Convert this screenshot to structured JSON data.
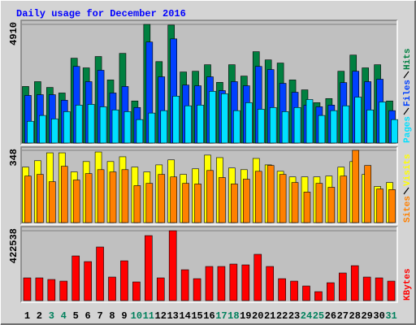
{
  "chart_data": [
    {
      "type": "bar",
      "title": "Daily usage for December 2016",
      "categories": [
        "1",
        "2",
        "3",
        "4",
        "5",
        "6",
        "7",
        "8",
        "9",
        "10",
        "11",
        "12",
        "13",
        "14",
        "15",
        "16",
        "17",
        "18",
        "19",
        "20",
        "21",
        "22",
        "23",
        "24",
        "25",
        "26",
        "27",
        "28",
        "29",
        "30",
        "31"
      ],
      "category_colors": [
        "#000000",
        "#000000",
        "#00805c",
        "#00805c",
        "#000000",
        "#000000",
        "#000000",
        "#000000",
        "#000000",
        "#00805c",
        "#00805c",
        "#000000",
        "#000000",
        "#000000",
        "#000000",
        "#000000",
        "#00805c",
        "#00805c",
        "#000000",
        "#000000",
        "#000000",
        "#000000",
        "#000000",
        "#00805c",
        "#00805c",
        "#000000",
        "#000000",
        "#000000",
        "#000000",
        "#000000",
        "#00805c"
      ],
      "ylim": [
        0,
        4910
      ],
      "yticks": [
        4910
      ],
      "series": [
        {
          "name": "Pages",
          "color": "#00e0ff",
          "values": [
            900,
            1140,
            1000,
            1300,
            1570,
            1600,
            1500,
            1370,
            1300,
            970,
            1240,
            1340,
            1940,
            1540,
            1570,
            2140,
            2040,
            1340,
            1670,
            1400,
            1470,
            1300,
            1470,
            1800,
            1140,
            1340,
            1540,
            1900,
            1370,
            1700,
            970
          ]
        },
        {
          "name": "Files",
          "color": "#0040ff",
          "values": [
            1970,
            2000,
            2000,
            1770,
            3170,
            2540,
            3010,
            2070,
            2340,
            1470,
            4180,
            2740,
            4310,
            2400,
            2370,
            2740,
            2170,
            2540,
            2370,
            3170,
            3040,
            2470,
            2100,
            1570,
            1500,
            1570,
            2500,
            2970,
            2540,
            2640,
            1340
          ]
        },
        {
          "name": "Hits",
          "color": "#008040",
          "values": [
            2340,
            2540,
            2300,
            2070,
            3510,
            3110,
            3580,
            2610,
            3710,
            1740,
            4910,
            3370,
            4880,
            2940,
            2970,
            3240,
            2510,
            3240,
            2770,
            3780,
            3440,
            3310,
            2610,
            2200,
            1670,
            1840,
            2970,
            3640,
            3110,
            3240,
            1740
          ]
        }
      ]
    },
    {
      "type": "bar",
      "ylim": [
        0,
        348
      ],
      "yticks": [
        348
      ],
      "series": [
        {
          "name": "Sites",
          "color": "#ff8000",
          "values": [
            224,
            232,
            197,
            271,
            205,
            236,
            255,
            244,
            255,
            178,
            189,
            232,
            220,
            189,
            186,
            251,
            217,
            186,
            209,
            247,
            275,
            232,
            193,
            147,
            189,
            170,
            224,
            348,
            275,
            162,
            159
          ]
        },
        {
          "name": "Visits",
          "color": "#ffff00",
          "values": [
            267,
            298,
            336,
            336,
            244,
            294,
            340,
            294,
            317,
            267,
            244,
            278,
            302,
            232,
            259,
            325,
            313,
            263,
            255,
            309,
            278,
            247,
            220,
            220,
            220,
            224,
            267,
            294,
            232,
            174,
            193
          ]
        }
      ]
    },
    {
      "type": "bar",
      "ylim": [
        0,
        422538
      ],
      "yticks": [
        422538
      ],
      "series": [
        {
          "name": "KBytes",
          "color": "#ff0000",
          "values": [
            137570,
            137570,
            127740,
            117910,
            270220,
            235830,
            324270,
            142480,
            240750,
            113000,
            393060,
            137570,
            422538,
            186700,
            132650,
            206350,
            206350,
            221090,
            216170,
            280050,
            206350,
            132650,
            117910,
            88430,
            54040,
            108090,
            167050,
            211260,
            142480,
            137570,
            117910
          ]
        }
      ]
    }
  ]
}
